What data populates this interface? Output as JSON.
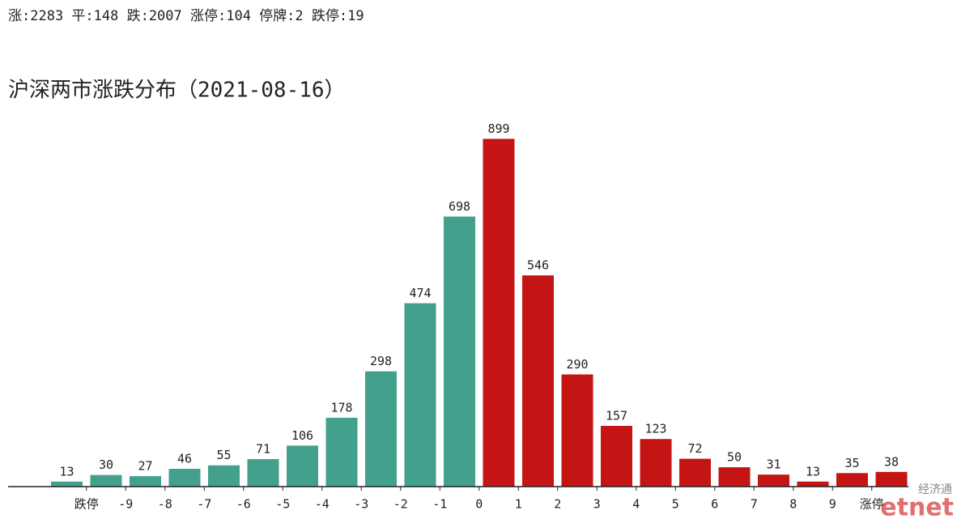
{
  "header": "涨:2283 平:148 跌:2007 涨停:104 停牌:2 跌停:19",
  "watermark": {
    "top": "经济通",
    "bottom": "etnet"
  },
  "chart_data": {
    "type": "bar",
    "title": "沪深两市涨跌分布（2021-08-16）",
    "values": [
      13,
      30,
      27,
      46,
      55,
      71,
      106,
      178,
      298,
      474,
      698,
      899,
      546,
      290,
      157,
      123,
      72,
      50,
      31,
      13,
      35,
      38
    ],
    "colors": [
      "#42a08c",
      "#42a08c",
      "#42a08c",
      "#42a08c",
      "#42a08c",
      "#42a08c",
      "#42a08c",
      "#42a08c",
      "#42a08c",
      "#42a08c",
      "#42a08c",
      "#c41414",
      "#c41414",
      "#c41414",
      "#c41414",
      "#c41414",
      "#c41414",
      "#c41414",
      "#c41414",
      "#c41414",
      "#c41414",
      "#c41414"
    ],
    "boundary_labels": [
      "跌停",
      "-9",
      "-8",
      "-7",
      "-6",
      "-5",
      "-4",
      "-3",
      "-2",
      "-1",
      "0",
      "1",
      "2",
      "3",
      "4",
      "5",
      "6",
      "7",
      "8",
      "9",
      "涨停"
    ],
    "ylim": [
      0,
      900
    ]
  }
}
